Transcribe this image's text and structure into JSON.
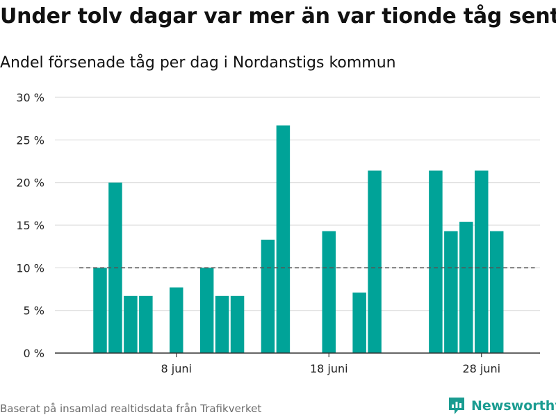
{
  "title": "Under tolv dagar var mer än var tionde tåg sent",
  "subtitle": "Andel försenade tåg per dag i Nordanstigs kommun",
  "source": "Baserat på insamlad realtidsdata från Trafikverket",
  "brand": {
    "name": "Newsworthy",
    "icon": "newsworthy-logo-icon",
    "color": "#1a9c91"
  },
  "chart_data": {
    "type": "bar",
    "title": "Under tolv dagar var mer än var tionde tåg sent",
    "subtitle": "Andel försenade tåg per dag i Nordanstigs kommun",
    "xlabel": "",
    "ylabel": "",
    "unit": "%",
    "ylim": [
      0,
      30
    ],
    "yticks": [
      0,
      5,
      10,
      15,
      20,
      25,
      30
    ],
    "ytick_labels": [
      "0 %",
      "5 %",
      "10 %",
      "15 %",
      "20 %",
      "25 %",
      "30 %"
    ],
    "xticks": [
      {
        "label": "8 juni",
        "day": 8
      },
      {
        "label": "18 juni",
        "day": 18
      },
      {
        "label": "28 juni",
        "day": 28
      }
    ],
    "x_unit": "day of June",
    "x_range": [
      1,
      31
    ],
    "reference_line": {
      "value": 10,
      "style": "dashed",
      "x_start": 2,
      "x_end": 31
    },
    "bar_color": "#00a398",
    "grid": true,
    "series": [
      {
        "days": [
          3,
          4,
          5,
          6,
          8,
          10,
          11,
          12,
          14,
          15,
          18,
          20,
          21,
          25,
          26,
          27,
          28,
          29
        ],
        "values": [
          10.0,
          20.0,
          6.7,
          6.7,
          7.7,
          10.0,
          6.7,
          6.7,
          13.3,
          26.7,
          14.3,
          7.1,
          21.4,
          21.4,
          14.3,
          15.4,
          21.4,
          14.3
        ]
      }
    ]
  }
}
